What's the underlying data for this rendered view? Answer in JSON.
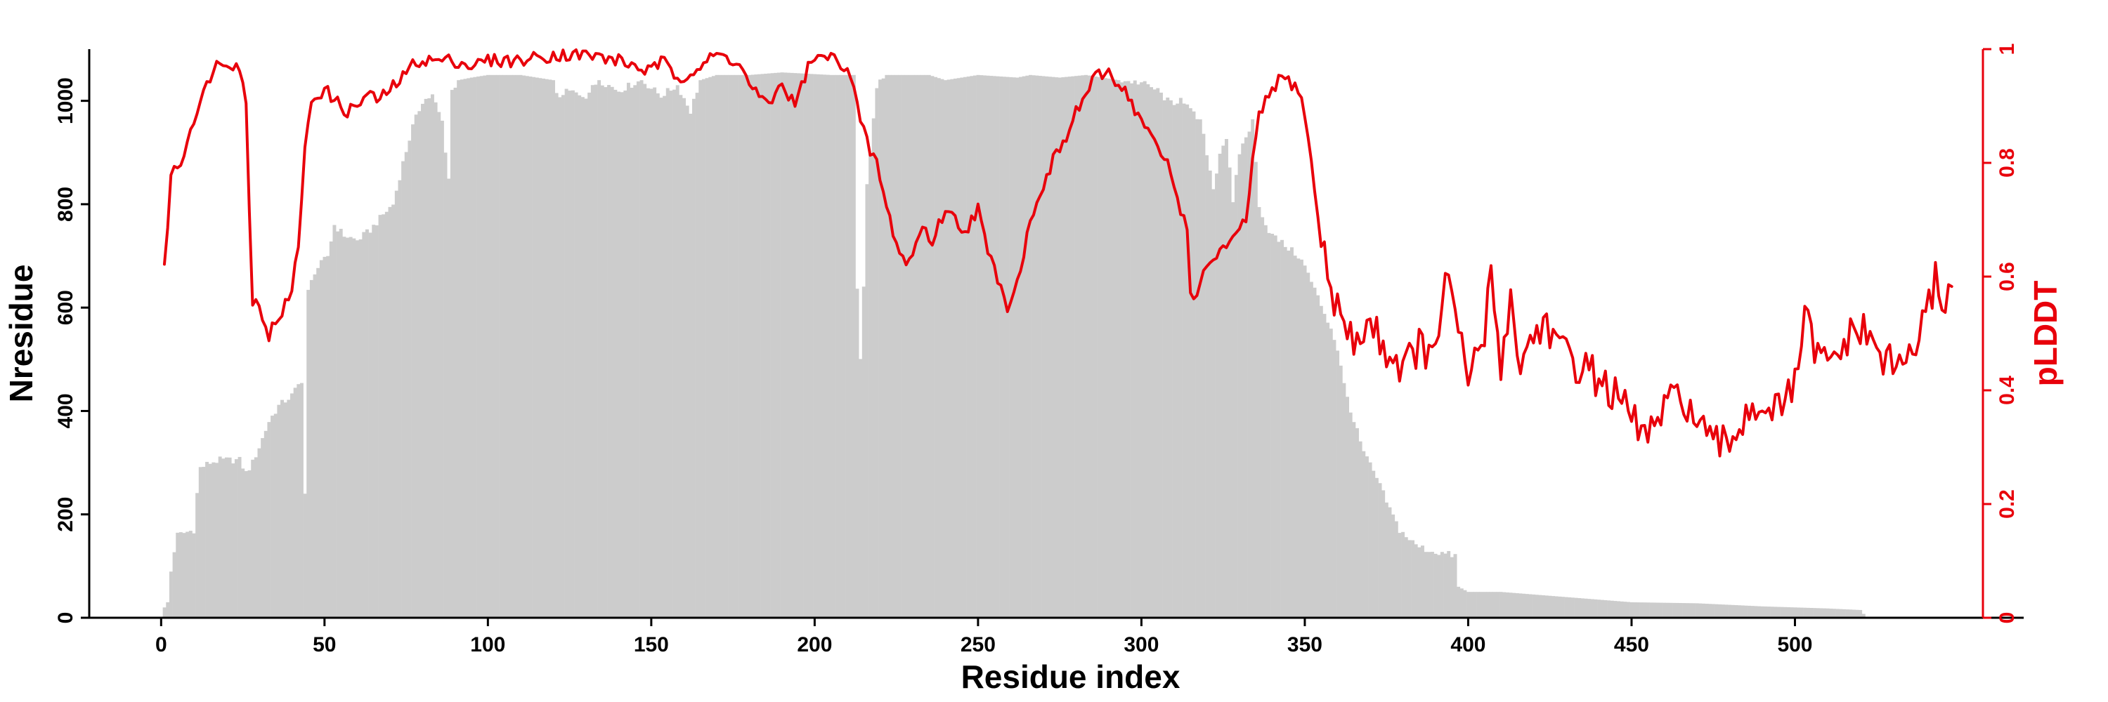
{
  "chart_data": {
    "type": "bar",
    "xlabel": "Residue index",
    "ylabel": "Nresidue",
    "y2label": "pLDDT",
    "xlim": [
      -22,
      570
    ],
    "ylim": [
      0,
      1100
    ],
    "y2lim": [
      0,
      1
    ],
    "x_ticks": [
      "0",
      "50",
      "100",
      "150",
      "200",
      "250",
      "300",
      "350",
      "400",
      "450",
      "500"
    ],
    "y_ticks": [
      "0",
      "200",
      "400",
      "600",
      "800",
      "1000"
    ],
    "y2_ticks": [
      "0",
      "0.2",
      "0.4",
      "0.6",
      "0.8",
      "1"
    ],
    "grid": false,
    "colors": {
      "bars": "#cccccc",
      "line": "#e8000b",
      "axis": "#000000",
      "right_axis": "#e8000b"
    },
    "bar_profile": [
      [
        1,
        20
      ],
      [
        2,
        30
      ],
      [
        3,
        90
      ],
      [
        4,
        130
      ],
      [
        5,
        160
      ],
      [
        10,
        170
      ],
      [
        11,
        240
      ],
      [
        12,
        290
      ],
      [
        15,
        300
      ],
      [
        18,
        305
      ],
      [
        24,
        305
      ],
      [
        26,
        280
      ],
      [
        28,
        300
      ],
      [
        30,
        330
      ],
      [
        33,
        380
      ],
      [
        36,
        410
      ],
      [
        40,
        430
      ],
      [
        43,
        460
      ],
      [
        44,
        240
      ],
      [
        45,
        630
      ],
      [
        47,
        670
      ],
      [
        51,
        700
      ],
      [
        53,
        760
      ],
      [
        56,
        740
      ],
      [
        60,
        730
      ],
      [
        64,
        750
      ],
      [
        68,
        780
      ],
      [
        71,
        800
      ],
      [
        74,
        880
      ],
      [
        77,
        950
      ],
      [
        80,
        1000
      ],
      [
        83,
        1010
      ],
      [
        86,
        960
      ],
      [
        88,
        850
      ],
      [
        89,
        1020
      ],
      [
        91,
        1040
      ],
      [
        95,
        1045
      ],
      [
        100,
        1050
      ],
      [
        110,
        1050
      ],
      [
        115,
        1045
      ],
      [
        120,
        1040
      ],
      [
        122,
        1000
      ],
      [
        124,
        1020
      ],
      [
        130,
        1010
      ],
      [
        134,
        1040
      ],
      [
        140,
        1020
      ],
      [
        147,
        1040
      ],
      [
        153,
        1010
      ],
      [
        158,
        1030
      ],
      [
        162,
        980
      ],
      [
        165,
        1040
      ],
      [
        170,
        1050
      ],
      [
        180,
        1050
      ],
      [
        190,
        1055
      ],
      [
        205,
        1050
      ],
      [
        212,
        1050
      ],
      [
        213,
        640
      ],
      [
        214,
        500
      ],
      [
        215,
        640
      ],
      [
        216,
        840
      ],
      [
        218,
        960
      ],
      [
        219,
        1030
      ],
      [
        222,
        1050
      ],
      [
        235,
        1050
      ],
      [
        240,
        1040
      ],
      [
        250,
        1050
      ],
      [
        262,
        1045
      ],
      [
        266,
        1050
      ],
      [
        275,
        1045
      ],
      [
        283,
        1050
      ],
      [
        293,
        1040
      ],
      [
        300,
        1035
      ],
      [
        305,
        1020
      ],
      [
        308,
        1000
      ],
      [
        310,
        990
      ],
      [
        312,
        1010
      ],
      [
        315,
        980
      ],
      [
        318,
        960
      ],
      [
        320,
        900
      ],
      [
        322,
        830
      ],
      [
        324,
        900
      ],
      [
        326,
        930
      ],
      [
        328,
        800
      ],
      [
        330,
        900
      ],
      [
        334,
        960
      ],
      [
        336,
        800
      ],
      [
        338,
        760
      ],
      [
        340,
        740
      ],
      [
        342,
        730
      ],
      [
        344,
        720
      ],
      [
        346,
        710
      ],
      [
        348,
        700
      ],
      [
        350,
        680
      ],
      [
        352,
        650
      ],
      [
        354,
        620
      ],
      [
        356,
        590
      ],
      [
        358,
        560
      ],
      [
        360,
        520
      ],
      [
        362,
        450
      ],
      [
        365,
        380
      ],
      [
        368,
        320
      ],
      [
        372,
        270
      ],
      [
        376,
        210
      ],
      [
        379,
        170
      ],
      [
        384,
        140
      ],
      [
        388,
        130
      ],
      [
        396,
        120
      ],
      [
        397,
        60
      ],
      [
        400,
        50
      ],
      [
        410,
        50
      ],
      [
        420,
        45
      ],
      [
        430,
        40
      ],
      [
        450,
        30
      ],
      [
        470,
        28
      ],
      [
        480,
        25
      ],
      [
        490,
        22
      ],
      [
        500,
        20
      ],
      [
        510,
        18
      ],
      [
        520,
        15
      ],
      [
        522,
        0
      ]
    ],
    "plddt_profile": [
      [
        1,
        0.61
      ],
      [
        3,
        0.78
      ],
      [
        6,
        0.8
      ],
      [
        10,
        0.88
      ],
      [
        13,
        0.92
      ],
      [
        16,
        0.97
      ],
      [
        20,
        0.98
      ],
      [
        24,
        0.97
      ],
      [
        26,
        0.9
      ],
      [
        27,
        0.72
      ],
      [
        28,
        0.56
      ],
      [
        30,
        0.55
      ],
      [
        32,
        0.52
      ],
      [
        33,
        0.49
      ],
      [
        34,
        0.51
      ],
      [
        36,
        0.53
      ],
      [
        40,
        0.57
      ],
      [
        42,
        0.66
      ],
      [
        44,
        0.82
      ],
      [
        46,
        0.91
      ],
      [
        48,
        0.92
      ],
      [
        50,
        0.93
      ],
      [
        53,
        0.91
      ],
      [
        57,
        0.89
      ],
      [
        60,
        0.9
      ],
      [
        63,
        0.92
      ],
      [
        67,
        0.91
      ],
      [
        70,
        0.93
      ],
      [
        74,
        0.95
      ],
      [
        78,
        0.98
      ],
      [
        85,
        0.98
      ],
      [
        90,
        0.98
      ],
      [
        95,
        0.97
      ],
      [
        100,
        0.98
      ],
      [
        110,
        0.98
      ],
      [
        120,
        0.99
      ],
      [
        130,
        0.99
      ],
      [
        140,
        0.98
      ],
      [
        150,
        0.96
      ],
      [
        153,
        0.98
      ],
      [
        158,
        0.95
      ],
      [
        162,
        0.96
      ],
      [
        165,
        0.97
      ],
      [
        170,
        0.99
      ],
      [
        176,
        0.98
      ],
      [
        180,
        0.94
      ],
      [
        185,
        0.9
      ],
      [
        188,
        0.92
      ],
      [
        190,
        0.94
      ],
      [
        194,
        0.9
      ],
      [
        198,
        0.97
      ],
      [
        203,
        0.99
      ],
      [
        210,
        0.97
      ],
      [
        212,
        0.93
      ],
      [
        214,
        0.87
      ],
      [
        217,
        0.82
      ],
      [
        219,
        0.8
      ],
      [
        222,
        0.72
      ],
      [
        225,
        0.66
      ],
      [
        228,
        0.62
      ],
      [
        230,
        0.64
      ],
      [
        233,
        0.69
      ],
      [
        236,
        0.66
      ],
      [
        240,
        0.72
      ],
      [
        243,
        0.7
      ],
      [
        246,
        0.68
      ],
      [
        250,
        0.72
      ],
      [
        253,
        0.64
      ],
      [
        256,
        0.6
      ],
      [
        259,
        0.55
      ],
      [
        262,
        0.59
      ],
      [
        265,
        0.67
      ],
      [
        268,
        0.74
      ],
      [
        271,
        0.77
      ],
      [
        274,
        0.82
      ],
      [
        277,
        0.84
      ],
      [
        280,
        0.89
      ],
      [
        283,
        0.92
      ],
      [
        286,
        0.95
      ],
      [
        290,
        0.96
      ],
      [
        293,
        0.94
      ],
      [
        296,
        0.92
      ],
      [
        299,
        0.88
      ],
      [
        302,
        0.86
      ],
      [
        305,
        0.82
      ],
      [
        308,
        0.8
      ],
      [
        311,
        0.74
      ],
      [
        314,
        0.68
      ],
      [
        315,
        0.58
      ],
      [
        317,
        0.56
      ],
      [
        320,
        0.62
      ],
      [
        325,
        0.65
      ],
      [
        328,
        0.66
      ],
      [
        332,
        0.7
      ],
      [
        334,
        0.8
      ],
      [
        336,
        0.88
      ],
      [
        340,
        0.93
      ],
      [
        343,
        0.95
      ],
      [
        346,
        0.94
      ],
      [
        349,
        0.92
      ],
      [
        352,
        0.8
      ],
      [
        355,
        0.66
      ],
      [
        358,
        0.58
      ],
      [
        360,
        0.55
      ],
      [
        362,
        0.51
      ],
      [
        365,
        0.48
      ],
      [
        370,
        0.52
      ],
      [
        375,
        0.47
      ],
      [
        380,
        0.44
      ],
      [
        385,
        0.48
      ],
      [
        390,
        0.45
      ],
      [
        393,
        0.62
      ],
      [
        396,
        0.52
      ],
      [
        400,
        0.42
      ],
      [
        405,
        0.5
      ],
      [
        407,
        0.6
      ],
      [
        410,
        0.45
      ],
      [
        413,
        0.56
      ],
      [
        416,
        0.44
      ],
      [
        420,
        0.5
      ],
      [
        424,
        0.52
      ],
      [
        428,
        0.47
      ],
      [
        432,
        0.45
      ],
      [
        436,
        0.44
      ],
      [
        440,
        0.42
      ],
      [
        445,
        0.39
      ],
      [
        450,
        0.35
      ],
      [
        455,
        0.32
      ],
      [
        460,
        0.36
      ],
      [
        465,
        0.4
      ],
      [
        470,
        0.34
      ],
      [
        475,
        0.3
      ],
      [
        480,
        0.31
      ],
      [
        485,
        0.36
      ],
      [
        490,
        0.38
      ],
      [
        495,
        0.36
      ],
      [
        500,
        0.41
      ],
      [
        503,
        0.53
      ],
      [
        506,
        0.47
      ],
      [
        510,
        0.44
      ],
      [
        515,
        0.48
      ],
      [
        520,
        0.51
      ],
      [
        525,
        0.47
      ],
      [
        530,
        0.44
      ],
      [
        535,
        0.46
      ],
      [
        540,
        0.52
      ],
      [
        543,
        0.6
      ],
      [
        546,
        0.55
      ],
      [
        548,
        0.59
      ]
    ]
  }
}
